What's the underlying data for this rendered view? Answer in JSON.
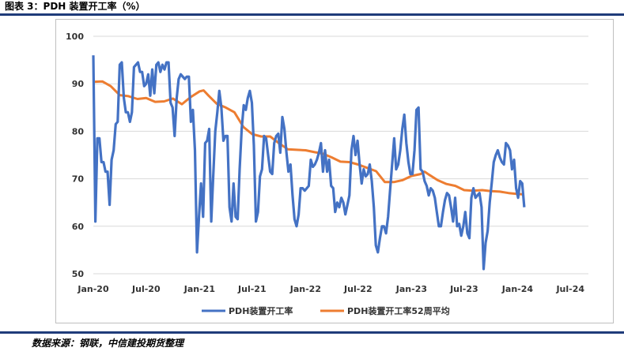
{
  "figure_title": "图表 3：PDH 装置开工率（%）",
  "source_note": "数据来源：钢联，中信建投期货整理",
  "colors": {
    "series1": "#4472c4",
    "series2": "#ed7d31",
    "rule": "#1f3c7a",
    "grid": "#d9d9d9"
  },
  "chart_data": {
    "type": "line",
    "title": "",
    "xlabel": "",
    "ylabel": "",
    "ylim": [
      50,
      100
    ],
    "yticks": [
      "100",
      "90",
      "80",
      "70",
      "60",
      "50"
    ],
    "xticks": [
      "Jan-20",
      "Jul-20",
      "Jan-21",
      "Jul-21",
      "Jan-22",
      "Jul-22",
      "Jan-23",
      "Jul-23",
      "Jan-24",
      "Jul-24"
    ],
    "grid": "horizontal",
    "legend_position": "bottom",
    "series": [
      {
        "name": "PDH装置开工率",
        "color": "#4472c4",
        "points": [
          [
            "2020-01-01",
            96
          ],
          [
            "2020-01-08",
            61
          ],
          [
            "2020-01-15",
            78.5
          ],
          [
            "2020-01-22",
            78.5
          ],
          [
            "2020-01-29",
            73.5
          ],
          [
            "2020-02-05",
            73.5
          ],
          [
            "2020-02-12",
            71.5
          ],
          [
            "2020-02-19",
            71.5
          ],
          [
            "2020-02-26",
            64.5
          ],
          [
            "2020-03-04",
            74
          ],
          [
            "2020-03-11",
            76
          ],
          [
            "2020-03-18",
            81.5
          ],
          [
            "2020-03-25",
            82
          ],
          [
            "2020-04-01",
            94
          ],
          [
            "2020-04-08",
            94.5
          ],
          [
            "2020-04-15",
            87
          ],
          [
            "2020-04-22",
            84
          ],
          [
            "2020-04-29",
            84
          ],
          [
            "2020-05-06",
            82
          ],
          [
            "2020-05-13",
            84
          ],
          [
            "2020-05-20",
            93.5
          ],
          [
            "2020-05-27",
            94
          ],
          [
            "2020-06-03",
            94.5
          ],
          [
            "2020-06-10",
            92.5
          ],
          [
            "2020-06-17",
            92.5
          ],
          [
            "2020-06-24",
            89.5
          ],
          [
            "2020-07-01",
            90
          ],
          [
            "2020-07-08",
            92
          ],
          [
            "2020-07-15",
            87.5
          ],
          [
            "2020-07-22",
            93
          ],
          [
            "2020-07-29",
            88
          ],
          [
            "2020-08-05",
            94
          ],
          [
            "2020-08-12",
            94.5
          ],
          [
            "2020-08-19",
            92.5
          ],
          [
            "2020-08-26",
            94
          ],
          [
            "2020-09-02",
            93
          ],
          [
            "2020-09-09",
            94.5
          ],
          [
            "2020-09-16",
            94.5
          ],
          [
            "2020-09-23",
            86
          ],
          [
            "2020-09-30",
            85
          ],
          [
            "2020-10-07",
            79
          ],
          [
            "2020-10-14",
            87
          ],
          [
            "2020-10-21",
            91
          ],
          [
            "2020-10-28",
            92
          ],
          [
            "2020-11-04",
            91.5
          ],
          [
            "2020-11-11",
            91
          ],
          [
            "2020-11-18",
            91.5
          ],
          [
            "2020-11-25",
            91.5
          ],
          [
            "2020-12-02",
            82
          ],
          [
            "2020-12-09",
            84.5
          ],
          [
            "2020-12-16",
            76
          ],
          [
            "2020-12-23",
            54.5
          ],
          [
            "2020-12-30",
            62
          ],
          [
            "2021-01-06",
            69
          ],
          [
            "2021-01-13",
            62
          ],
          [
            "2021-01-20",
            77.5
          ],
          [
            "2021-01-27",
            78
          ],
          [
            "2021-02-03",
            80.5
          ],
          [
            "2021-02-10",
            61
          ],
          [
            "2021-02-17",
            70.5
          ],
          [
            "2021-02-24",
            80
          ],
          [
            "2021-03-03",
            84
          ],
          [
            "2021-03-10",
            88.5
          ],
          [
            "2021-03-17",
            85
          ],
          [
            "2021-03-24",
            78
          ],
          [
            "2021-03-31",
            79
          ],
          [
            "2021-04-07",
            79
          ],
          [
            "2021-04-14",
            64
          ],
          [
            "2021-04-21",
            61
          ],
          [
            "2021-04-28",
            69
          ],
          [
            "2021-05-05",
            62
          ],
          [
            "2021-05-12",
            61.5
          ],
          [
            "2021-05-19",
            72
          ],
          [
            "2021-05-26",
            80.5
          ],
          [
            "2021-06-02",
            85.5
          ],
          [
            "2021-06-09",
            84.5
          ],
          [
            "2021-06-16",
            87
          ],
          [
            "2021-06-23",
            88.5
          ],
          [
            "2021-06-30",
            86
          ],
          [
            "2021-07-07",
            77
          ],
          [
            "2021-07-14",
            61
          ],
          [
            "2021-07-21",
            63
          ],
          [
            "2021-07-28",
            70.5
          ],
          [
            "2021-08-04",
            72
          ],
          [
            "2021-08-11",
            79
          ],
          [
            "2021-08-18",
            78.5
          ],
          [
            "2021-08-25",
            75
          ],
          [
            "2021-09-01",
            71.5
          ],
          [
            "2021-09-08",
            71
          ],
          [
            "2021-09-15",
            77.5
          ],
          [
            "2021-09-22",
            79
          ],
          [
            "2021-09-29",
            79.5
          ],
          [
            "2021-10-06",
            75.5
          ],
          [
            "2021-10-13",
            83
          ],
          [
            "2021-10-20",
            80.5
          ],
          [
            "2021-10-27",
            75.5
          ],
          [
            "2021-11-03",
            71.5
          ],
          [
            "2021-11-10",
            73
          ],
          [
            "2021-11-17",
            66.5
          ],
          [
            "2021-11-24",
            61.5
          ],
          [
            "2021-12-01",
            60
          ],
          [
            "2021-12-08",
            62.5
          ],
          [
            "2021-12-15",
            68
          ],
          [
            "2021-12-22",
            68
          ],
          [
            "2021-12-29",
            67.5
          ],
          [
            "2022-01-05",
            68
          ],
          [
            "2022-01-12",
            68.5
          ],
          [
            "2022-01-19",
            74
          ],
          [
            "2022-01-26",
            72.5
          ],
          [
            "2022-02-02",
            73
          ],
          [
            "2022-02-09",
            74
          ],
          [
            "2022-02-16",
            75.5
          ],
          [
            "2022-02-23",
            77.5
          ],
          [
            "2022-03-02",
            71.5
          ],
          [
            "2022-03-09",
            76
          ],
          [
            "2022-03-16",
            71.5
          ],
          [
            "2022-03-23",
            74
          ],
          [
            "2022-03-30",
            68.5
          ],
          [
            "2022-04-06",
            68
          ],
          [
            "2022-04-13",
            63
          ],
          [
            "2022-04-20",
            65
          ],
          [
            "2022-04-27",
            64
          ],
          [
            "2022-05-04",
            66
          ],
          [
            "2022-05-11",
            65
          ],
          [
            "2022-05-18",
            62.5
          ],
          [
            "2022-05-25",
            64.5
          ],
          [
            "2022-06-01",
            66.5
          ],
          [
            "2022-06-08",
            76
          ],
          [
            "2022-06-15",
            79
          ],
          [
            "2022-06-22",
            75
          ],
          [
            "2022-06-29",
            78
          ],
          [
            "2022-07-06",
            73
          ],
          [
            "2022-07-13",
            69
          ],
          [
            "2022-07-20",
            72
          ],
          [
            "2022-07-27",
            70.5
          ],
          [
            "2022-08-03",
            71
          ],
          [
            "2022-08-10",
            73
          ],
          [
            "2022-08-17",
            69.5
          ],
          [
            "2022-08-24",
            64
          ],
          [
            "2022-08-31",
            56
          ],
          [
            "2022-09-07",
            54.5
          ],
          [
            "2022-09-14",
            57.5
          ],
          [
            "2022-09-21",
            60
          ],
          [
            "2022-09-28",
            60
          ],
          [
            "2022-10-05",
            58.5
          ],
          [
            "2022-10-12",
            62
          ],
          [
            "2022-10-19",
            67.5
          ],
          [
            "2022-10-26",
            73
          ],
          [
            "2022-11-02",
            78.5
          ],
          [
            "2022-11-09",
            72
          ],
          [
            "2022-11-16",
            73
          ],
          [
            "2022-11-23",
            76
          ],
          [
            "2022-11-30",
            80.5
          ],
          [
            "2022-12-07",
            83.5
          ],
          [
            "2022-12-14",
            77.5
          ],
          [
            "2022-12-21",
            73.5
          ],
          [
            "2022-12-28",
            71
          ],
          [
            "2023-01-04",
            71
          ],
          [
            "2023-01-11",
            76
          ],
          [
            "2023-01-18",
            84.5
          ],
          [
            "2023-01-25",
            85
          ],
          [
            "2023-02-01",
            72
          ],
          [
            "2023-02-08",
            71.5
          ],
          [
            "2023-02-15",
            69.5
          ],
          [
            "2023-02-22",
            68.5
          ],
          [
            "2023-03-01",
            66.5
          ],
          [
            "2023-03-08",
            68
          ],
          [
            "2023-03-15",
            67.5
          ],
          [
            "2023-03-22",
            66
          ],
          [
            "2023-03-29",
            63
          ],
          [
            "2023-04-05",
            60
          ],
          [
            "2023-04-12",
            60
          ],
          [
            "2023-04-19",
            63
          ],
          [
            "2023-04-26",
            65.5
          ],
          [
            "2023-05-03",
            67
          ],
          [
            "2023-05-10",
            66.5
          ],
          [
            "2023-05-17",
            64
          ],
          [
            "2023-05-24",
            61
          ],
          [
            "2023-05-31",
            66
          ],
          [
            "2023-06-07",
            60
          ],
          [
            "2023-06-14",
            60.5
          ],
          [
            "2023-06-21",
            58
          ],
          [
            "2023-06-28",
            60
          ],
          [
            "2023-07-05",
            63
          ],
          [
            "2023-07-12",
            58.5
          ],
          [
            "2023-07-19",
            57.5
          ],
          [
            "2023-07-26",
            66
          ],
          [
            "2023-08-02",
            68
          ],
          [
            "2023-08-09",
            66
          ],
          [
            "2023-08-16",
            66.5
          ],
          [
            "2023-08-23",
            67
          ],
          [
            "2023-08-30",
            64
          ],
          [
            "2023-09-06",
            51
          ],
          [
            "2023-09-13",
            56.5
          ],
          [
            "2023-09-20",
            59
          ],
          [
            "2023-09-27",
            65
          ],
          [
            "2023-10-04",
            69
          ],
          [
            "2023-10-11",
            73.5
          ],
          [
            "2023-10-18",
            75
          ],
          [
            "2023-10-25",
            76
          ],
          [
            "2023-11-01",
            74.5
          ],
          [
            "2023-11-08",
            73.5
          ],
          [
            "2023-11-15",
            73
          ],
          [
            "2023-11-22",
            77.5
          ],
          [
            "2023-11-29",
            77
          ],
          [
            "2023-12-06",
            76
          ],
          [
            "2023-12-13",
            72
          ],
          [
            "2023-12-20",
            74
          ],
          [
            "2023-12-27",
            68
          ],
          [
            "2024-01-03",
            66
          ],
          [
            "2024-01-10",
            69.5
          ],
          [
            "2024-01-17",
            69
          ],
          [
            "2024-01-24",
            64
          ]
        ]
      },
      {
        "name": "PDH装置开工率52周平均",
        "color": "#ed7d31",
        "points": [
          [
            "2020-01-01",
            90.4
          ],
          [
            "2020-02-01",
            90.5
          ],
          [
            "2020-03-01",
            89.5
          ],
          [
            "2020-04-01",
            87.6
          ],
          [
            "2020-05-01",
            87.4
          ],
          [
            "2020-06-01",
            86.8
          ],
          [
            "2020-07-01",
            87
          ],
          [
            "2020-08-01",
            86.2
          ],
          [
            "2020-09-01",
            86.3
          ],
          [
            "2020-10-01",
            86.9
          ],
          [
            "2020-11-01",
            85.7
          ],
          [
            "2020-12-01",
            87.2
          ],
          [
            "2021-01-01",
            88.4
          ],
          [
            "2021-01-15",
            88.6
          ],
          [
            "2021-02-01",
            87.5
          ],
          [
            "2021-03-01",
            85.8
          ],
          [
            "2021-04-01",
            85
          ],
          [
            "2021-05-01",
            84
          ],
          [
            "2021-06-01",
            80.9
          ],
          [
            "2021-07-01",
            79.4
          ],
          [
            "2021-08-01",
            78.9
          ],
          [
            "2021-09-01",
            78.9
          ],
          [
            "2021-10-01",
            77.5
          ],
          [
            "2021-11-01",
            76.2
          ],
          [
            "2021-12-01",
            76.1
          ],
          [
            "2022-01-01",
            76
          ],
          [
            "2022-02-01",
            75.6
          ],
          [
            "2022-03-01",
            75.3
          ],
          [
            "2022-04-01",
            74.5
          ],
          [
            "2022-05-01",
            73.6
          ],
          [
            "2022-06-01",
            73.5
          ],
          [
            "2022-07-01",
            73
          ],
          [
            "2022-08-01",
            72.3
          ],
          [
            "2022-09-01",
            71.6
          ],
          [
            "2022-10-01",
            69.3
          ],
          [
            "2022-11-01",
            69.3
          ],
          [
            "2022-12-01",
            69.7
          ],
          [
            "2023-01-01",
            70.6
          ],
          [
            "2023-02-01",
            71
          ],
          [
            "2023-02-15",
            71.5
          ],
          [
            "2023-03-01",
            70.9
          ],
          [
            "2023-04-01",
            69.7
          ],
          [
            "2023-05-01",
            68.9
          ],
          [
            "2023-06-01",
            68.5
          ],
          [
            "2023-07-01",
            67.6
          ],
          [
            "2023-08-01",
            67.5
          ],
          [
            "2023-09-01",
            67.6
          ],
          [
            "2023-10-01",
            67.4
          ],
          [
            "2023-11-01",
            67.3
          ],
          [
            "2023-12-01",
            67
          ],
          [
            "2024-01-01",
            66.8
          ],
          [
            "2024-01-24",
            66.7
          ]
        ]
      }
    ]
  }
}
